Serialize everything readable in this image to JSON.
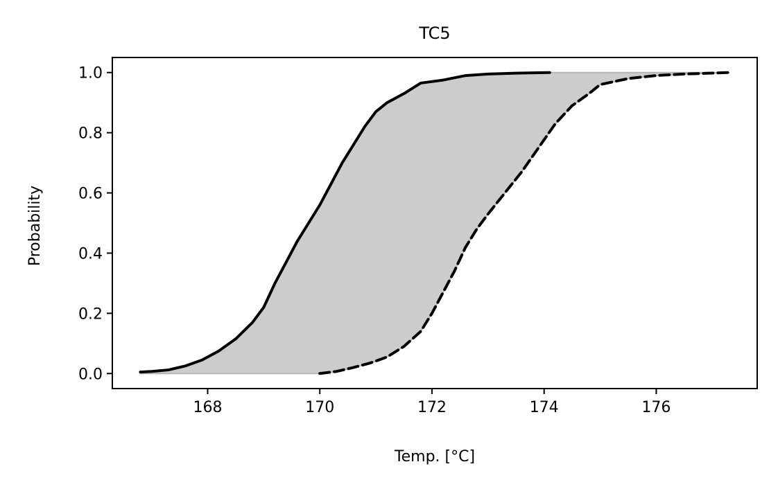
{
  "chart_data": {
    "type": "area",
    "title": "TC5",
    "xlabel": "Temp. [°C]",
    "ylabel": "Probability",
    "xlim": [
      166.3,
      177.8
    ],
    "ylim": [
      -0.05,
      1.05
    ],
    "xticks": [
      168,
      170,
      172,
      174,
      176
    ],
    "yticks": [
      0.0,
      0.2,
      0.4,
      0.6,
      0.8,
      1.0
    ],
    "xtick_labels": [
      "168",
      "170",
      "172",
      "174",
      "176"
    ],
    "ytick_labels": [
      "0.0",
      "0.2",
      "0.4",
      "0.6",
      "0.8",
      "1.0"
    ],
    "grid": false,
    "legend": "none",
    "fill_color": "#cccccc",
    "series": [
      {
        "style": "solid",
        "color": "#000000",
        "x": [
          166.8,
          167.0,
          167.3,
          167.6,
          167.9,
          168.2,
          168.5,
          168.8,
          169.0,
          169.2,
          169.4,
          169.6,
          169.8,
          170.0,
          170.2,
          170.4,
          170.6,
          170.8,
          171.0,
          171.2,
          171.5,
          171.8,
          172.2,
          172.6,
          173.0,
          173.5,
          174.1
        ],
        "y": [
          0.005,
          0.007,
          0.012,
          0.025,
          0.045,
          0.075,
          0.115,
          0.17,
          0.22,
          0.3,
          0.37,
          0.44,
          0.5,
          0.56,
          0.63,
          0.7,
          0.76,
          0.82,
          0.87,
          0.9,
          0.93,
          0.965,
          0.975,
          0.99,
          0.995,
          0.998,
          1.0
        ]
      },
      {
        "style": "dashed",
        "color": "#000000",
        "x": [
          170.0,
          170.3,
          170.6,
          170.9,
          171.2,
          171.5,
          171.8,
          172.0,
          172.2,
          172.4,
          172.6,
          172.8,
          173.0,
          173.3,
          173.6,
          173.9,
          174.2,
          174.5,
          174.8,
          175.0,
          175.5,
          176.0,
          176.5,
          177.3
        ],
        "y": [
          0.0,
          0.007,
          0.02,
          0.035,
          0.055,
          0.09,
          0.14,
          0.2,
          0.27,
          0.34,
          0.42,
          0.48,
          0.53,
          0.6,
          0.67,
          0.75,
          0.83,
          0.89,
          0.93,
          0.96,
          0.98,
          0.99,
          0.995,
          1.0
        ]
      }
    ]
  }
}
